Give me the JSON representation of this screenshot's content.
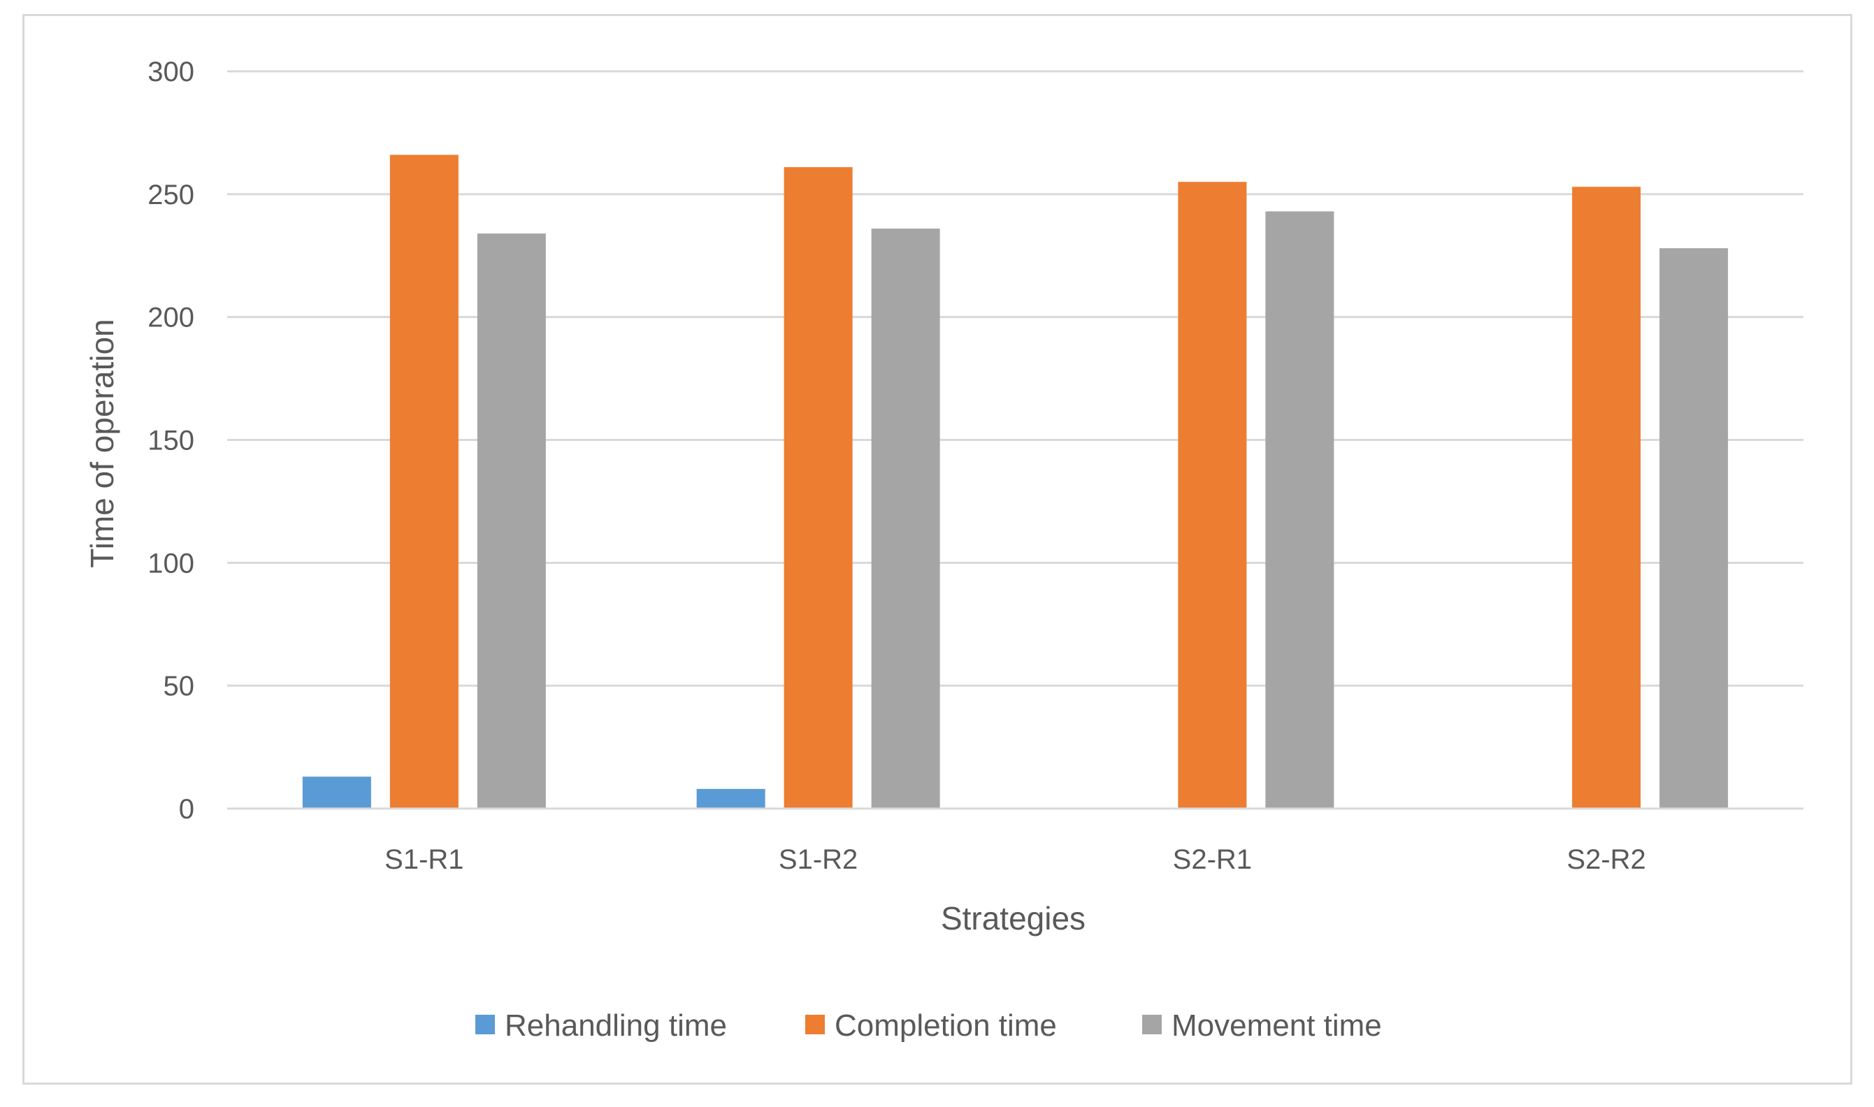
{
  "chart_data": {
    "type": "bar",
    "title": "",
    "xlabel": "Strategies",
    "ylabel": "Time of operation",
    "categories": [
      "S1-R1",
      "S1-R2",
      "S2-R1",
      "S2-R2"
    ],
    "series": [
      {
        "name": "Rehandling time",
        "color": "#5b9bd5",
        "values": [
          13,
          8,
          0,
          0
        ]
      },
      {
        "name": "Completion time",
        "color": "#ed7d31",
        "values": [
          266,
          261,
          255,
          253
        ]
      },
      {
        "name": "Movement time",
        "color": "#a5a5a5",
        "values": [
          234,
          236,
          243,
          228
        ]
      }
    ],
    "ylim": [
      0,
      300
    ],
    "yticks": [
      "0",
      "50",
      "100",
      "150",
      "200",
      "250",
      "300"
    ],
    "grid": true,
    "legend_position": "bottom"
  }
}
